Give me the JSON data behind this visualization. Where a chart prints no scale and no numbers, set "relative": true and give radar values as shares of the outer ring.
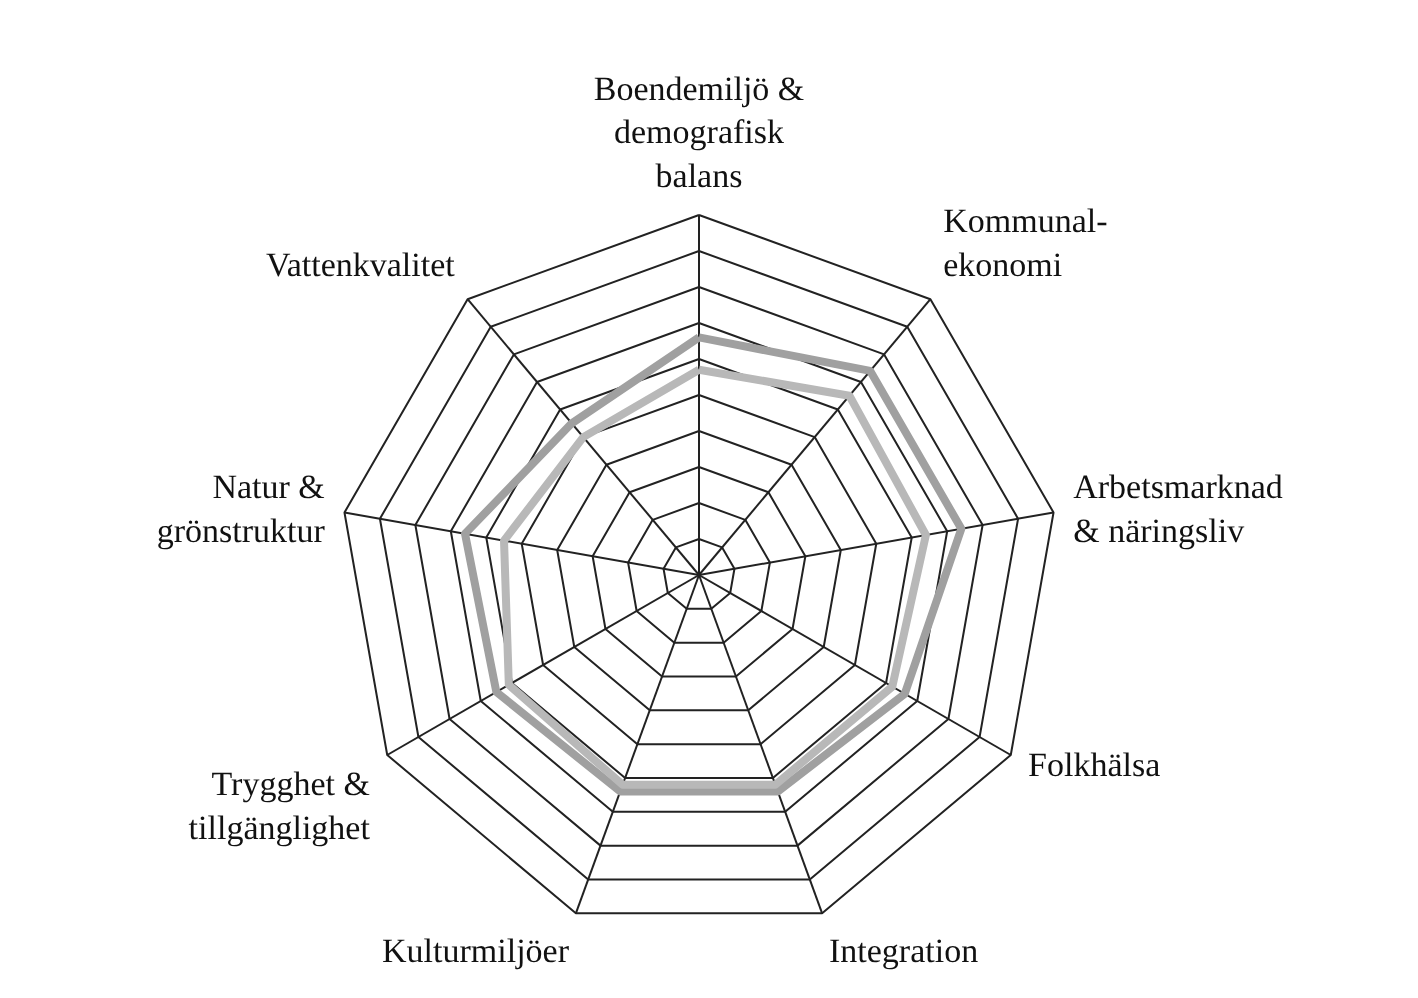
{
  "chart_data": {
    "type": "radar",
    "relative": true,
    "grid": true,
    "categories": [
      "Boendemiljö &\ndemografisk\nbalans",
      "Kommunal-\nekonomi",
      "Arbetsmarknad\n& näringsliv",
      "Folkhälsa",
      "Integration",
      "Kulturmiljöer",
      "Trygghet &\ntillgänglighet",
      "Natur &\ngrönstruktur",
      "Vattenkvalitet"
    ],
    "series": [
      {
        "color": "#a0a0a0",
        "values": [
          0.66,
          0.74,
          0.74,
          0.66,
          0.64,
          0.64,
          0.65,
          0.66,
          0.55
        ]
      },
      {
        "color": "#b8b8b8",
        "values": [
          0.57,
          0.65,
          0.64,
          0.62,
          0.62,
          0.62,
          0.61,
          0.55,
          0.5
        ]
      }
    ]
  }
}
